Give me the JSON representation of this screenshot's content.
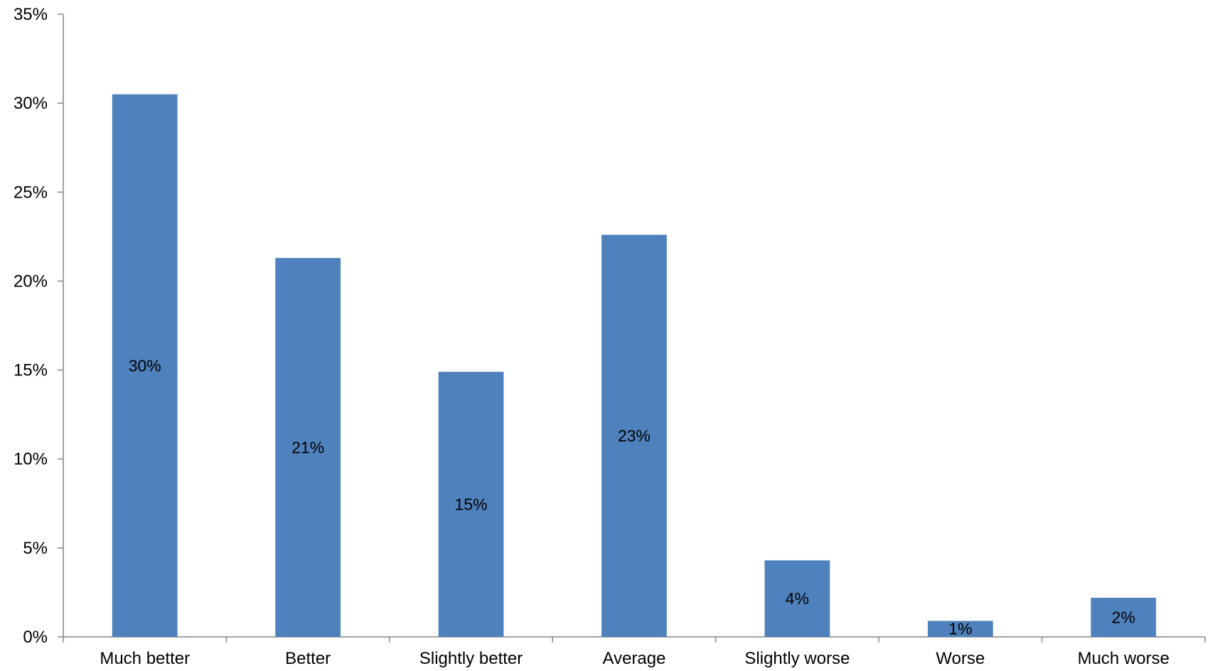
{
  "chart_data": {
    "type": "bar",
    "title": "",
    "xlabel": "",
    "ylabel": "",
    "categories": [
      "Much better",
      "Better",
      "Slightly better",
      "Average",
      "Slightly worse",
      "Worse",
      "Much worse"
    ],
    "values": [
      30.5,
      21.3,
      14.9,
      22.6,
      4.3,
      0.9,
      2.2
    ],
    "data_labels": [
      "30%",
      "21%",
      "15%",
      "23%",
      "4%",
      "1%",
      "2%"
    ],
    "ylim": [
      0,
      35
    ],
    "yticks": [
      0,
      5,
      10,
      15,
      20,
      25,
      30,
      35
    ],
    "ytick_labels": [
      "0%",
      "5%",
      "10%",
      "15%",
      "20%",
      "25%",
      "30%",
      "35%"
    ],
    "grid": false,
    "legend": "none",
    "bar_color": "#4F81BD",
    "axis_color": "#868686"
  }
}
